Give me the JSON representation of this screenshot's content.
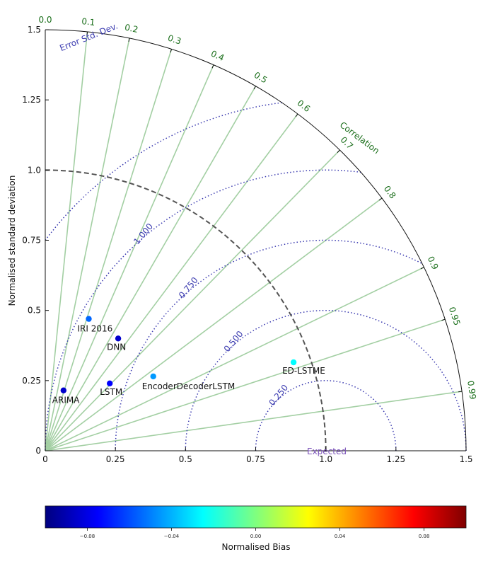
{
  "chart_data": {
    "type": "scatter",
    "subtype": "taylor-diagram",
    "ylabel": "Normalised standard deviation",
    "std_ticks": [
      "0",
      "0.25",
      "0.5",
      "0.75",
      "1.0",
      "1.25",
      "1.5"
    ],
    "std_tick_values": [
      0,
      0.25,
      0.5,
      0.75,
      1.0,
      1.25,
      1.5
    ],
    "x_ticks": [
      "0",
      "0.25",
      "0.5",
      "0.75",
      "1.0",
      "1.25",
      "1.5"
    ],
    "std_max": 1.5,
    "correlation_label": "Correlation",
    "correlation_ticks": [
      "0.0",
      "0.1",
      "0.2",
      "0.3",
      "0.4",
      "0.5",
      "0.6",
      "0.7",
      "0.8",
      "0.9",
      "0.95",
      "0.99"
    ],
    "correlation_values": [
      0.0,
      0.1,
      0.2,
      0.3,
      0.4,
      0.5,
      0.6,
      0.7,
      0.8,
      0.9,
      0.95,
      0.99
    ],
    "rms_label": "Error Std. Dev.",
    "rms_ticks": [
      "0.250",
      "0.500",
      "0.750",
      "1.000"
    ],
    "rms_values": [
      0.25,
      0.5,
      0.75,
      1.0,
      1.25
    ],
    "reference": {
      "label": "Expected",
      "std": 1.0
    },
    "points": [
      {
        "label": "IRI 2016",
        "x": 0.155,
        "y": 0.47,
        "bias": -0.055
      },
      {
        "label": "DNN",
        "x": 0.26,
        "y": 0.4,
        "bias": -0.085
      },
      {
        "label": "LSTM",
        "x": 0.23,
        "y": 0.24,
        "bias": -0.075
      },
      {
        "label": "ARIMA",
        "x": 0.065,
        "y": 0.215,
        "bias": -0.085
      },
      {
        "label": "EncoderDecoderLSTM",
        "x": 0.385,
        "y": 0.265,
        "bias": -0.045
      },
      {
        "label": "ED-LSTME",
        "x": 0.885,
        "y": 0.315,
        "bias": -0.025
      }
    ],
    "colorbar": {
      "label": "Normalised Bias",
      "ticks": [
        "−0.08",
        "−0.04",
        "0.00",
        "0.04",
        "0.08"
      ],
      "tick_values": [
        -0.08,
        -0.04,
        0.0,
        0.04,
        0.08
      ],
      "range": [
        -0.1,
        0.1
      ],
      "colormap": [
        "#00007f",
        "#0000ff",
        "#007fff",
        "#00ffff",
        "#7fff7f",
        "#ffff00",
        "#ff7f00",
        "#ff0000",
        "#7f0000"
      ]
    },
    "colors": {
      "correlation_lines": "#a3cfa3",
      "correlation_text": "#1a6e1a",
      "rms_contours": "#3b3bb0",
      "reference_arc": "#555555"
    }
  }
}
